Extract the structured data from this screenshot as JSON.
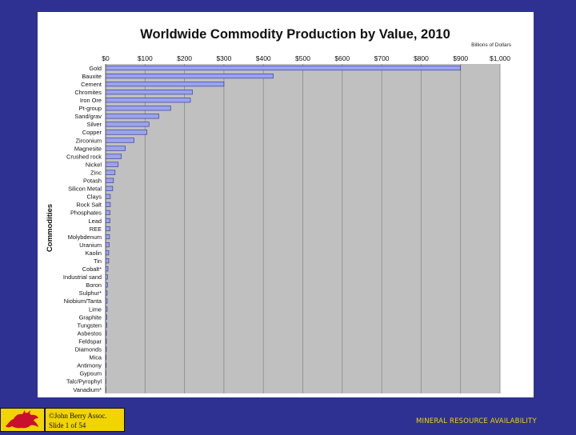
{
  "footer": {
    "copyright_line1": "©John Berry Assoc.",
    "copyright_line2": "Slide 1 of 54",
    "right_text": "MINERAL RESOURCE AVAILABILITY"
  },
  "colors": {
    "background": "#2e3192",
    "plot_area": "#c0c0c0",
    "bar_fill": "#9aa3f2",
    "bar_stroke": "#2a2f8a",
    "logo_bg": "#f2d400",
    "dragon": "#c8102e"
  },
  "chart_data": {
    "type": "bar",
    "orientation": "horizontal",
    "title": "Worldwide Commodity Production by Value, 2010",
    "units_label": "Billions of Dollars",
    "ylabel": "Commodities",
    "xlim": [
      0,
      1000
    ],
    "x_ticks": [
      "$0",
      "$100",
      "$200",
      "$300",
      "$400",
      "$500",
      "$600",
      "$700",
      "$800",
      "$900",
      "$1,000"
    ],
    "grid": true,
    "categories": [
      "Gold",
      "Bauxite",
      "Cement",
      "Chromites",
      "Iron Ore",
      "Pt-group",
      "Sand/grav",
      "Silver",
      "Copper",
      "Zirconium",
      "Magnesite",
      "Crushed rock",
      "Nickel",
      "Zinc",
      "Potash",
      "Silicon Metal",
      "Clays",
      "Rock Salt",
      "Phosphates",
      "Lead",
      "REE",
      "Molybdenum",
      "Uranium",
      "Kaolin",
      "Tin",
      "Cobalt*",
      "Industrial sand",
      "Boron",
      "Sulphur*",
      "Niobium/Tanta",
      "Lime",
      "Graphite",
      "Tungsten",
      "Asbestos",
      "Feldspar",
      "Diamonds",
      "Mica",
      "Antimony",
      "Gypsum",
      "Talc/Pyrophyl",
      "Vanadium*"
    ],
    "values": [
      900,
      425,
      300,
      220,
      215,
      165,
      135,
      110,
      105,
      72,
      50,
      40,
      32,
      24,
      20,
      18,
      12,
      12,
      11,
      11,
      11,
      10,
      9,
      8,
      8,
      6,
      5,
      5,
      4,
      4,
      4,
      3,
      3,
      2,
      2,
      2,
      1.5,
      1.5,
      1,
      1,
      1
    ]
  }
}
